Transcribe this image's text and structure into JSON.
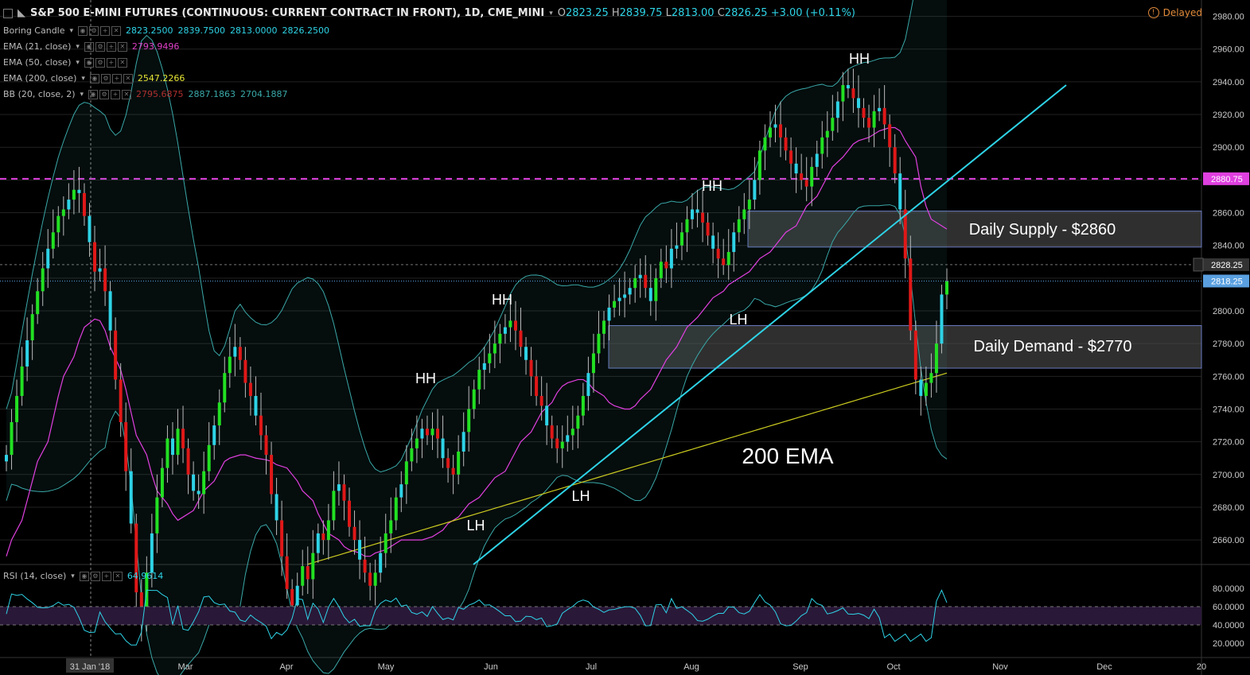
{
  "header": {
    "symbol_title": "S&P 500 E-MINI FUTURES (CONTINUOUS: CURRENT CONTRACT IN FRONT), 1D, CME_MINI",
    "ohlc": {
      "o": "2823.25",
      "h": "2839.75",
      "l": "2813.00",
      "c": "2826.25",
      "change": "+3.00 (+0.11%)"
    },
    "delayed_label": "Delayed"
  },
  "indicators": [
    {
      "label": "Boring Candle",
      "values": [
        "2823.2500",
        "2839.7500",
        "2813.0000",
        "2826.2500"
      ],
      "color": "#2ed3e6"
    },
    {
      "label": "EMA (21, close)",
      "values": [
        "2793.9496"
      ],
      "color": "#e040c8"
    },
    {
      "label": "EMA (50, close)",
      "values": [],
      "color": "#2a8fd6"
    },
    {
      "label": "EMA (200, close)",
      "values": [
        "2547.2266"
      ],
      "color": "#e6e635"
    },
    {
      "label": "BB (20, close, 2)",
      "values": [
        "2795.6875",
        "2887.1863",
        "2704.1887"
      ],
      "colors": [
        "#b03030",
        "#3aa8a8",
        "#3aa8a8"
      ]
    }
  ],
  "rsi": {
    "label": "RSI (14, close)",
    "value": "64.9614",
    "ticks": [
      "80.0000",
      "60.0000",
      "40.0000",
      "20.0000"
    ]
  },
  "price_badges": {
    "dashed_level": "2880.75",
    "crosshair": "2828.25",
    "last": "2818.25"
  },
  "chart_data": {
    "type": "candlestick",
    "title": "S&P 500 E-MINI FUTURES (CONTINUOUS: CURRENT CONTRACT IN FRONT), 1D, CME_MINI",
    "y_ticks": [
      2980,
      2960,
      2940,
      2920,
      2900,
      2880,
      2860,
      2840,
      2820,
      2800,
      2780,
      2760,
      2740,
      2720,
      2700,
      2680,
      2660
    ],
    "ylim": [
      2645,
      2990
    ],
    "x_labels": [
      {
        "label": "31 Jan '18",
        "i": 0,
        "highlight": true
      },
      {
        "label": "Mar",
        "i": 21
      },
      {
        "label": "Apr",
        "i": 42
      },
      {
        "label": "May",
        "i": 63
      },
      {
        "label": "Jun",
        "i": 85
      },
      {
        "label": "Jul",
        "i": 107
      },
      {
        "label": "Aug",
        "i": 128
      },
      {
        "label": "Sep",
        "i": 151
      },
      {
        "label": "Oct",
        "i": 170
      },
      {
        "label": "Nov",
        "i": 193
      },
      {
        "label": "Dec",
        "i": 215
      },
      {
        "label": "20",
        "i": 237
      }
    ],
    "closes": [
      2712,
      2732,
      2748,
      2766,
      2782,
      2798,
      2812,
      2826,
      2838,
      2848,
      2858,
      2862,
      2868,
      2874,
      2872,
      2858,
      2842,
      2824,
      2826,
      2812,
      2788,
      2758,
      2732,
      2702,
      2670,
      2628,
      2610,
      2640,
      2664,
      2686,
      2704,
      2722,
      2712,
      2728,
      2716,
      2700,
      2690,
      2688,
      2702,
      2718,
      2730,
      2744,
      2762,
      2772,
      2778,
      2770,
      2756,
      2748,
      2736,
      2724,
      2712,
      2688,
      2672,
      2650,
      2630,
      2620,
      2632,
      2644,
      2636,
      2652,
      2664,
      2660,
      2672,
      2690,
      2694,
      2684,
      2668,
      2660,
      2648,
      2640,
      2632,
      2640,
      2652,
      2664,
      2672,
      2686,
      2694,
      2708,
      2716,
      2722,
      2728,
      2724,
      2728,
      2722,
      2710,
      2704,
      2700,
      2714,
      2726,
      2740,
      2752,
      2764,
      2768,
      2774,
      2780,
      2786,
      2790,
      2794,
      2788,
      2778,
      2770,
      2760,
      2748,
      2742,
      2730,
      2722,
      2716,
      2720,
      2724,
      2728,
      2736,
      2748,
      2762,
      2774,
      2786,
      2794,
      2802,
      2806,
      2808,
      2810,
      2814,
      2820,
      2822,
      2814,
      2806,
      2820,
      2830,
      2826,
      2838,
      2840,
      2848,
      2856,
      2862,
      2860,
      2854,
      2846,
      2838,
      2832,
      2828,
      2836,
      2848,
      2856,
      2862,
      2868,
      2880,
      2898,
      2906,
      2912,
      2914,
      2906,
      2898,
      2890,
      2884,
      2880,
      2876,
      2888,
      2896,
      2906,
      2910,
      2918,
      2928,
      2938,
      2936,
      2930,
      2924,
      2918,
      2912,
      2922,
      2924,
      2914,
      2900,
      2884,
      2862,
      2832,
      2788,
      2758,
      2748,
      2756,
      2762,
      2780,
      2810,
      2818
    ],
    "ema21": [
      2650,
      2660,
      2672,
      2684,
      2696,
      2708,
      2720,
      2734,
      2748,
      2760,
      2772,
      2782,
      2790,
      2795,
      2794,
      2788,
      2778,
      2764,
      2752,
      2738,
      2724,
      2712,
      2700,
      2690,
      2682,
      2676,
      2672,
      2674,
      2678,
      2684,
      2690,
      2696,
      2702,
      2708,
      2710,
      2712,
      2712,
      2711,
      2710,
      2709,
      2708,
      2706,
      2704,
      2700,
      2696,
      2690,
      2684,
      2676,
      2670,
      2664,
      2660,
      2656,
      2654,
      2652,
      2650,
      2650,
      2652,
      2654,
      2656,
      2658,
      2660,
      2660,
      2660,
      2660,
      2662,
      2664,
      2666,
      2670,
      2674,
      2678,
      2682,
      2686,
      2690,
      2694,
      2698,
      2702,
      2708,
      2714,
      2720,
      2726,
      2732,
      2738,
      2744,
      2750,
      2754,
      2756,
      2758,
      2758,
      2756,
      2752,
      2748,
      2744,
      2742,
      2740,
      2740,
      2742,
      2746,
      2752,
      2758,
      2764,
      2770,
      2778,
      2784,
      2790,
      2796,
      2800,
      2804,
      2808,
      2812,
      2816,
      2818,
      2820,
      2824,
      2828,
      2832,
      2836,
      2840,
      2844,
      2848,
      2852,
      2858,
      2864,
      2870,
      2876,
      2882,
      2888,
      2894,
      2898,
      2902,
      2904,
      2906,
      2908,
      2910,
      2912,
      2912,
      2910,
      2904,
      2894,
      2876,
      2864,
      2856,
      2852,
      2850
    ]
  },
  "annotations": {
    "hh": [
      "HH",
      "HH",
      "HH",
      "HH"
    ],
    "lh": [
      "LH",
      "LH",
      "LH"
    ],
    "ema200": "200 EMA",
    "supply": "Daily Supply - $2860",
    "demand": "Daily Demand - $2770"
  },
  "colors": {
    "up": "#22e022",
    "down": "#e01818",
    "neutral": "#2ed3e6",
    "grid": "#222",
    "trendline": "#2ed3e6",
    "magenta": "#e040e0",
    "ema200": "#cccc20",
    "bb": "#3aa8a8",
    "rsi": "#2ed3e6",
    "rsi_band": "#2a1838"
  }
}
